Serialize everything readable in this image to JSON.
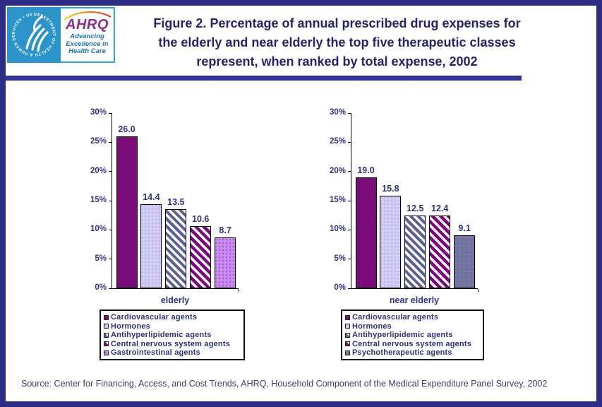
{
  "header": {
    "logo": {
      "hhs_ring_text": "DEPARTMENT OF HEALTH & HUMAN SERVICES • USA",
      "ahrq_acronym": "AHRQ",
      "ahrq_tagline_lines": [
        "Advancing",
        "Excellence in",
        "Health Care"
      ]
    },
    "title_lines": [
      "Figure 2. Percentage of annual prescribed drug expenses for",
      "the elderly and near elderly the top five therapeutic classes",
      "represent, when ranked by total expense, 2002"
    ]
  },
  "chart_data": [
    {
      "type": "bar",
      "group_label": "elderly",
      "categories": [
        "Cardiovascular agents",
        "Hormones",
        "Antihyperlipidemic agents",
        "Central nervous system agents",
        "Gastrointestinal agents"
      ],
      "values": [
        26.0,
        14.4,
        13.5,
        10.6,
        8.7
      ],
      "value_labels": [
        "26.0",
        "14.4",
        "13.5",
        "10.6",
        "8.7"
      ],
      "styles": [
        "solid-purple",
        "dot-lavender",
        "hatch-slate",
        "hatch-purple",
        "dot-violet"
      ],
      "ylim": [
        0,
        30
      ],
      "ytick_step": 5,
      "ytick_labels": [
        "0%",
        "5%",
        "10%",
        "15%",
        "20%",
        "25%",
        "30%"
      ],
      "grid": false,
      "legend_position": "below"
    },
    {
      "type": "bar",
      "group_label": "near elderly",
      "categories": [
        "Cardiovascular agents",
        "Hormones",
        "Antihyperlipidemic agents",
        "Central nervous system agents",
        "Psychotherapeutic agents"
      ],
      "values": [
        19.0,
        15.8,
        12.5,
        12.4,
        9.1
      ],
      "value_labels": [
        "19.0",
        "15.8",
        "12.5",
        "12.4",
        "9.1"
      ],
      "styles": [
        "solid-purple",
        "dot-lavender",
        "hatch-slate",
        "hatch-purple",
        "solid-slate"
      ],
      "ylim": [
        0,
        30
      ],
      "ytick_step": 5,
      "ytick_labels": [
        "0%",
        "5%",
        "10%",
        "15%",
        "20%",
        "25%",
        "30%"
      ],
      "grid": false,
      "legend_position": "below"
    }
  ],
  "footer": {
    "source": "Source: Center for Financing, Access, and Cost Trends, AHRQ, Household Component of the Medical Expenditure Panel Survey, 2002"
  },
  "colors": {
    "page_border": "#2D2D86",
    "title_text": "#262270",
    "title_underline_bar": "#32329B",
    "chart_text": "#30308C",
    "legend_text": "#2F2F7F",
    "source_text": "#3C3C6E",
    "bar_solid_purple": "#7A0C7A",
    "bar_dot_lavender": "#CFCFF5",
    "bar_hatch_slate": "#5E5E9A",
    "bar_hatch_purple": "#7E067E",
    "bar_dot_violet": "#CB8CF0",
    "bar_solid_slate": "#72729F",
    "hhs_logo_blue": "#2B94CA",
    "logo_cyan_border": "#29ABE2",
    "ahrq_purple": "#8E2E8E",
    "ahrq_tagline_blue": "#1B75BC"
  }
}
